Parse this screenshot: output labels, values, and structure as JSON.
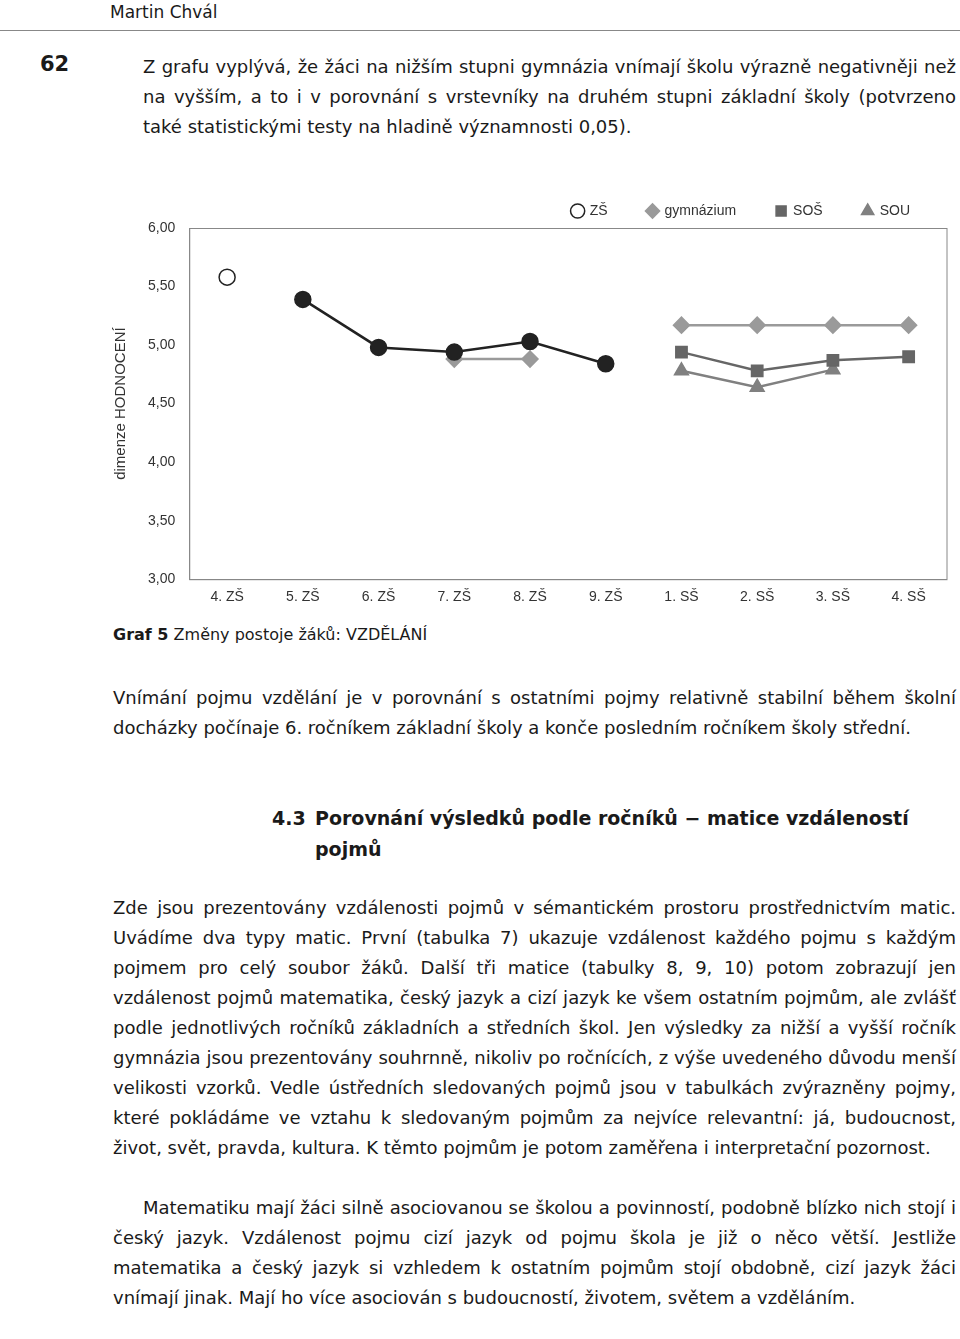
{
  "header": {
    "author": "Martin Chvál",
    "page": "62"
  },
  "intro": "Z grafu vyplývá, že žáci na nižším stupni gymnázia vnímají školu výrazně negativněji než na vyšším, a to i v porovnání s vrstevníky na druhém stupni základní školy (potvrzeno také statistickými testy na hladině významnosti 0,05).",
  "chart_data": {
    "type": "line",
    "y_label": "dimenze HODNOCENÍ",
    "categories": [
      "4. ZŠ",
      "5. ZŠ",
      "6. ZŠ",
      "7. ZŠ",
      "8. ZŠ",
      "9. ZŠ",
      "1. SŠ",
      "2. SŠ",
      "3. SŠ",
      "4. SŠ"
    ],
    "series": [
      {
        "name": "ZŠ",
        "color": "#222222",
        "marker": "circle",
        "line_style": "solid",
        "values": [
          5.58,
          5.39,
          4.98,
          4.94,
          5.03,
          4.84,
          null,
          null,
          null,
          null
        ]
      },
      {
        "name": "gymnázium",
        "color": "#9a9a9a",
        "marker": "diamond",
        "line_style": "solid",
        "values": [
          null,
          null,
          null,
          4.88,
          4.88,
          null,
          5.17,
          5.17,
          5.17,
          5.17
        ]
      },
      {
        "name": "SOŠ",
        "color": "#666666",
        "marker": "square",
        "line_style": "solid",
        "values": [
          null,
          null,
          null,
          null,
          null,
          null,
          4.94,
          4.78,
          4.87,
          4.9
        ]
      },
      {
        "name": "SOU",
        "color": "#808080",
        "marker": "triangle",
        "line_style": "solid",
        "values": [
          null,
          null,
          null,
          null,
          null,
          null,
          4.78,
          4.64,
          4.79,
          null
        ]
      }
    ],
    "ylim": [
      3,
      6
    ],
    "yticks": [
      {
        "value": 3,
        "label": "3,00"
      },
      {
        "value": 3.5,
        "label": "3,50"
      },
      {
        "value": 4,
        "label": "4,00"
      },
      {
        "value": 4.5,
        "label": "4,50"
      },
      {
        "value": 5,
        "label": "5,00"
      },
      {
        "value": 5.5,
        "label": "5,50"
      },
      {
        "value": 6,
        "label": "6,00"
      }
    ],
    "grid": false,
    "legend": "top"
  },
  "caption": {
    "label": "Graf 5",
    "text": "Změny postoje žáků: VZDĚLÁNÍ"
  },
  "after_chart": "Vnímání pojmu vzdělání je v porovnání s ostatními pojmy relativně stabilní během školní docházky počínaje 6. ročníkem základní školy a konče posledním ročníkem školy střední.",
  "section": {
    "number": "4.3",
    "title": "Porovnání výsledků podle ročníků − matice vzdáleností pojmů"
  },
  "section_paragraphs": [
    "Zde jsou prezentovány vzdálenosti pojmů v sémantickém prostoru prostřednictvím matic. Uvádíme dva typy matic. První (tabulka 7) ukazuje vzdálenost každého pojmu s každým pojmem pro celý soubor žáků. Další tři matice (tabulky 8, 9, 10) potom zobrazují jen vzdálenost pojmů matematika, český jazyk a cizí jazyk ke všem ostatním pojmům, ale zvlášť podle jednotlivých ročníků základních a středních škol. Jen výsledky za nižší a vyšší ročník gymnázia jsou prezentovány souhrnně, nikoliv po ročnících, z výše uvedeného důvodu menší velikosti vzorků. Vedle ústředních sledovaných pojmů jsou v tabulkách zvýrazněny pojmy, které pokládáme ve vztahu k sledovaným pojmům za nejvíce relevantní: já, budoucnost, život, svět, pravda, kultura. K těmto pojmům je potom zaměřena i interpretační pozornost.",
    "Matematiku mají žáci silně asociovanou se školou a povinností, podobně blízko nich stojí i český jazyk. Vzdálenost pojmu cizí jazyk od pojmu škola je již o něco větší. Jestliže matematika a český jazyk si vzhledem k ostatním pojmům stojí obdobně, cizí jazyk žáci vnímají jinak. Mají ho více asociován s budoucností, životem, světem a vzděláním."
  ]
}
